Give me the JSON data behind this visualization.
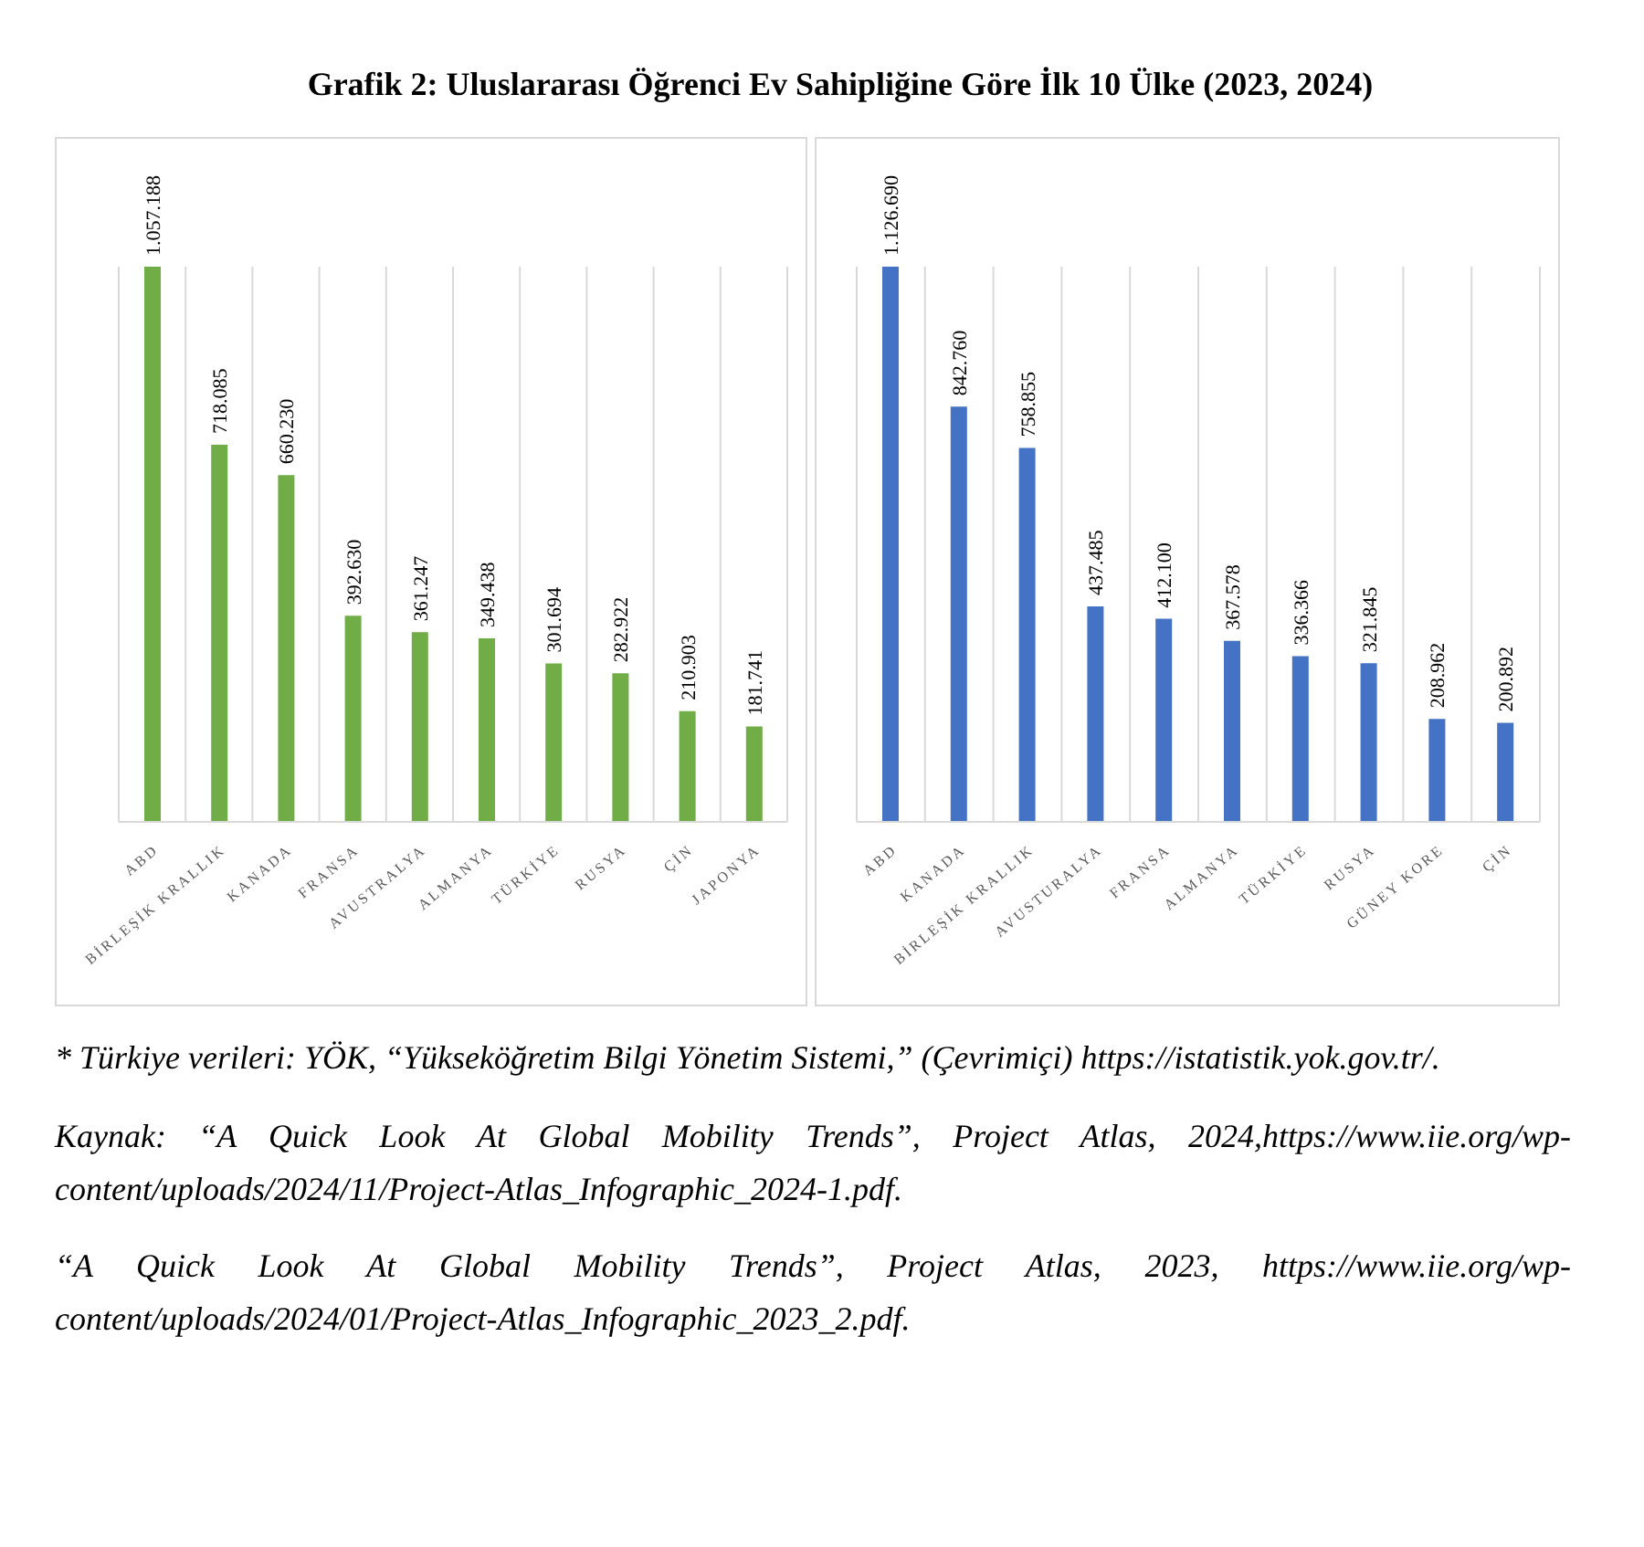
{
  "chart_data": [
    {
      "type": "bar",
      "title": "Grafik 2: Uluslararası Öğrenci Ev Sahipliğine Göre İlk 10 Ülke (2023, 2024)",
      "grid": "x",
      "categories": [
        "ABD",
        "BİRLEŞİK KRALLIK",
        "KANADA",
        "FRANSA",
        "AVUSTRALYA",
        "ALMANYA",
        "TÜRKİYE",
        "RUSYA",
        "ÇİN",
        "JAPONYA"
      ],
      "series": [
        {
          "color": "#70ad47",
          "values": [
            1057188,
            718085,
            660230,
            392630,
            361247,
            349438,
            301694,
            282922,
            210903,
            181741
          ],
          "value_labels": [
            "1.057.188",
            "718.085",
            "660.230",
            "392.630",
            "361.247",
            "349.438",
            "301.694",
            "282.922",
            "210.903",
            "181.741"
          ]
        }
      ]
    },
    {
      "type": "bar",
      "grid": "x",
      "categories": [
        "ABD",
        "KANADA",
        "BİRLEŞİK KRALLIK",
        "AVUSTURALYA",
        "FRANSA",
        "ALMANYA",
        "TÜRKİYE",
        "RUSYA",
        "GÜNEY KORE",
        "ÇİN"
      ],
      "series": [
        {
          "color": "#4472c4",
          "values": [
            1126690,
            842760,
            758855,
            437485,
            412100,
            367578,
            336366,
            321845,
            208962,
            200892
          ],
          "value_labels": [
            "1.126.690",
            "842.760",
            "758.855",
            "437.485",
            "412.100",
            "367.578",
            "336.366",
            "321.845",
            "208.962",
            "200.892"
          ]
        }
      ],
      "annotations": [
        "* Türkiye verileri: YÖK, “Yükseköğretim Bilgi Yönetim Sistemi,” (Çevrimiçi) https://istatistik.yok.gov.tr/.",
        "Kaynak: “A Quick Look At Global Mobility Trends”, Project Atlas, 2024,https://www.iie.org/wp-content/uploads/2024/11/Project-Atlas_Infographic_2024-1.pdf.",
        "“A Quick Look At Global Mobility Trends”, Project Atlas, 2023, https://www.iie.org/wp-content/uploads/2024/01/Project-Atlas_Infographic_2023_2.pdf."
      ]
    }
  ]
}
